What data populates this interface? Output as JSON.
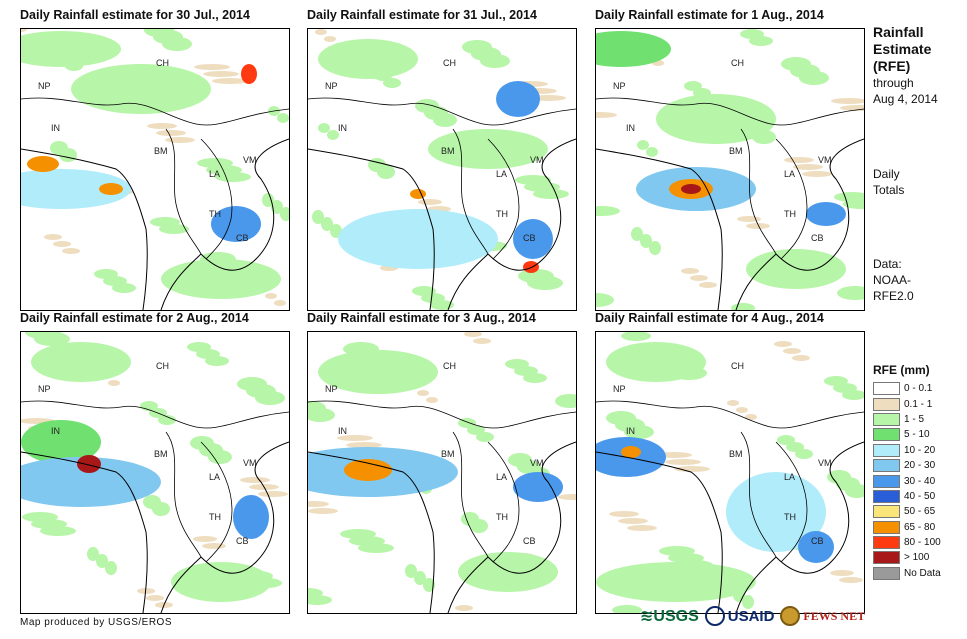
{
  "panels": [
    {
      "title": "Daily Rainfall estimate for 30 Jul., 2014"
    },
    {
      "title": "Daily Rainfall estimate for 31 Jul., 2014"
    },
    {
      "title": "Daily Rainfall estimate for 1 Aug., 2014"
    },
    {
      "title": "Daily Rainfall estimate for 2 Aug., 2014"
    },
    {
      "title": "Daily Rainfall estimate for 3 Aug., 2014"
    },
    {
      "title": "Daily Rainfall estimate for 4 Aug., 2014"
    }
  ],
  "map_labels": [
    "CH",
    "NP",
    "IN",
    "BM",
    "LA",
    "VM",
    "TH",
    "CB"
  ],
  "side": {
    "title_line1": "Rainfall",
    "title_line2": "Estimate",
    "title_line3": "(RFE)",
    "through_line1": "through",
    "through_line2": "Aug 4, 2014",
    "daily_line1": "Daily",
    "daily_line2": "Totals",
    "data_line1": "Data:",
    "data_line2": "NOAA-",
    "data_line3": "RFE2.0"
  },
  "legend": {
    "title": "RFE (mm)",
    "items": [
      {
        "label": "0 - 0.1",
        "color": "#ffffff"
      },
      {
        "label": "0.1 - 1",
        "color": "#eeddbf"
      },
      {
        "label": "1 - 5",
        "color": "#b7f5a8"
      },
      {
        "label": "5 - 10",
        "color": "#70e070"
      },
      {
        "label": "10 - 20",
        "color": "#b0ecfa"
      },
      {
        "label": "20 - 30",
        "color": "#80c8f0"
      },
      {
        "label": "30 - 40",
        "color": "#4a98ec"
      },
      {
        "label": "40 - 50",
        "color": "#2a5ed8"
      },
      {
        "label": "50 - 65",
        "color": "#fae57a"
      },
      {
        "label": "65 - 80",
        "color": "#f59100"
      },
      {
        "label": "80 - 100",
        "color": "#ff3a10"
      },
      {
        "label": "> 100",
        "color": "#a81818"
      },
      {
        "label": "No Data",
        "color": "#9a9a9a"
      }
    ]
  },
  "credit": "Map produced by USGS/EROS",
  "logos": {
    "usgs": "≋USGS",
    "usaid": "USAID",
    "fews": "FEWS NET"
  }
}
